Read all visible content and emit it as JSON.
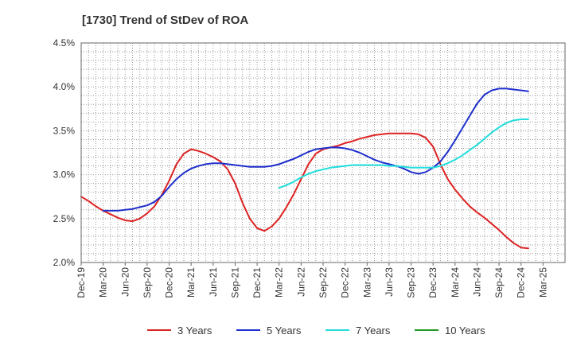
{
  "chart_data": {
    "type": "line",
    "title": "[1730]  Trend of StDev of ROA",
    "xlabel": "",
    "ylabel": "",
    "ylim": [
      2.0,
      4.5
    ],
    "x_ticks": [
      "Dec-19",
      "Mar-20",
      "Jun-20",
      "Sep-20",
      "Dec-20",
      "Mar-21",
      "Jun-21",
      "Sep-21",
      "Dec-21",
      "Mar-22",
      "Jun-22",
      "Sep-22",
      "Dec-22",
      "Mar-23",
      "Jun-23",
      "Sep-23",
      "Dec-23",
      "Mar-24",
      "Jun-24",
      "Sep-24",
      "Dec-24",
      "Mar-25"
    ],
    "y_ticks": [
      "2.0%",
      "2.5%",
      "3.0%",
      "3.5%",
      "4.0%",
      "4.5%"
    ],
    "y_tick_values": [
      2.0,
      2.5,
      3.0,
      3.5,
      4.0,
      4.5
    ],
    "grid": true,
    "legend_position": "bottom",
    "series": [
      {
        "name": "3 Years",
        "color": "#dd2222",
        "values": [
          2.75,
          2.7,
          2.64,
          2.59,
          2.55,
          2.51,
          2.48,
          2.47,
          2.5,
          2.56,
          2.64,
          2.77,
          2.93,
          3.12,
          3.24,
          3.29,
          3.27,
          3.24,
          3.2,
          3.15,
          3.06,
          2.9,
          2.68,
          2.5,
          2.39,
          2.36,
          2.41,
          2.5,
          2.63,
          2.78,
          2.95,
          3.12,
          3.24,
          3.29,
          3.31,
          3.33,
          3.36,
          3.38,
          3.41,
          3.43,
          3.45,
          3.46,
          3.47,
          3.47,
          3.47,
          3.47,
          3.46,
          3.42,
          3.32,
          3.12,
          2.95,
          2.83,
          2.73,
          2.64,
          2.57,
          2.51,
          2.44,
          2.37,
          2.29,
          2.22,
          2.17,
          2.16
        ]
      },
      {
        "name": "5 Years",
        "color": "#1f2fcc",
        "values": [
          null,
          null,
          null,
          2.59,
          2.59,
          2.59,
          2.6,
          2.61,
          2.63,
          2.65,
          2.69,
          2.76,
          2.86,
          2.95,
          3.02,
          3.07,
          3.1,
          3.12,
          3.13,
          3.13,
          3.12,
          3.11,
          3.1,
          3.09,
          3.09,
          3.09,
          3.1,
          3.12,
          3.15,
          3.18,
          3.22,
          3.26,
          3.29,
          3.3,
          3.31,
          3.31,
          3.3,
          3.28,
          3.25,
          3.21,
          3.17,
          3.14,
          3.12,
          3.1,
          3.07,
          3.03,
          3.01,
          3.03,
          3.08,
          3.15,
          3.26,
          3.39,
          3.53,
          3.67,
          3.81,
          3.91,
          3.96,
          3.98,
          3.98,
          3.97,
          3.96,
          3.95
        ]
      },
      {
        "name": "7 Years",
        "color": "#22dddd",
        "values": [
          null,
          null,
          null,
          null,
          null,
          null,
          null,
          null,
          null,
          null,
          null,
          null,
          null,
          null,
          null,
          null,
          null,
          null,
          null,
          null,
          null,
          null,
          null,
          null,
          null,
          null,
          null,
          2.85,
          2.88,
          2.92,
          2.97,
          3.01,
          3.04,
          3.06,
          3.08,
          3.09,
          3.1,
          3.11,
          3.11,
          3.11,
          3.11,
          3.11,
          3.1,
          3.1,
          3.09,
          3.08,
          3.08,
          3.08,
          3.08,
          3.1,
          3.13,
          3.17,
          3.22,
          3.28,
          3.34,
          3.41,
          3.48,
          3.54,
          3.59,
          3.62,
          3.63,
          3.63
        ]
      },
      {
        "name": "10 Years",
        "color": "#229922",
        "values": []
      }
    ]
  }
}
